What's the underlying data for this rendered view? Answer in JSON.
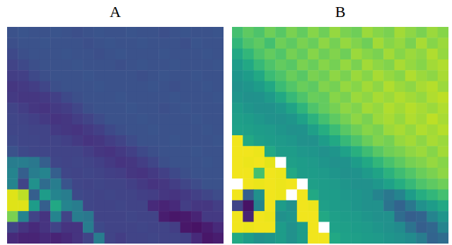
{
  "chart_data": [
    {
      "type": "heatmap",
      "title": "A",
      "zlim": [
        0,
        1
      ],
      "tick_labels": false,
      "z": [
        [
          0.25,
          0.26,
          0.25,
          0.25,
          0.26,
          0.25,
          0.24,
          0.25,
          0.26,
          0.25,
          0.25,
          0.26,
          0.25,
          0.25,
          0.24,
          0.25,
          0.26,
          0.25,
          0.25,
          0.26
        ],
        [
          0.24,
          0.25,
          0.25,
          0.26,
          0.25,
          0.25,
          0.25,
          0.24,
          0.25,
          0.26,
          0.25,
          0.25,
          0.26,
          0.25,
          0.25,
          0.25,
          0.24,
          0.26,
          0.25,
          0.25
        ],
        [
          0.22,
          0.24,
          0.25,
          0.25,
          0.25,
          0.26,
          0.25,
          0.25,
          0.24,
          0.25,
          0.26,
          0.25,
          0.25,
          0.25,
          0.26,
          0.25,
          0.25,
          0.25,
          0.26,
          0.25
        ],
        [
          0.2,
          0.22,
          0.24,
          0.25,
          0.25,
          0.25,
          0.26,
          0.25,
          0.25,
          0.25,
          0.24,
          0.25,
          0.26,
          0.25,
          0.25,
          0.26,
          0.25,
          0.25,
          0.25,
          0.26
        ],
        [
          0.18,
          0.19,
          0.22,
          0.24,
          0.25,
          0.25,
          0.25,
          0.26,
          0.25,
          0.25,
          0.25,
          0.25,
          0.24,
          0.25,
          0.26,
          0.25,
          0.25,
          0.26,
          0.25,
          0.25
        ],
        [
          0.16,
          0.17,
          0.18,
          0.21,
          0.24,
          0.25,
          0.25,
          0.25,
          0.26,
          0.25,
          0.25,
          0.25,
          0.25,
          0.26,
          0.25,
          0.24,
          0.25,
          0.25,
          0.26,
          0.25
        ],
        [
          0.17,
          0.16,
          0.16,
          0.17,
          0.19,
          0.22,
          0.24,
          0.25,
          0.25,
          0.25,
          0.26,
          0.25,
          0.25,
          0.25,
          0.25,
          0.26,
          0.25,
          0.25,
          0.25,
          0.26
        ],
        [
          0.2,
          0.18,
          0.16,
          0.15,
          0.17,
          0.18,
          0.21,
          0.24,
          0.25,
          0.25,
          0.25,
          0.26,
          0.25,
          0.25,
          0.24,
          0.25,
          0.26,
          0.25,
          0.25,
          0.25
        ],
        [
          0.21,
          0.2,
          0.19,
          0.17,
          0.15,
          0.16,
          0.18,
          0.2,
          0.23,
          0.25,
          0.25,
          0.25,
          0.26,
          0.25,
          0.25,
          0.25,
          0.25,
          0.26,
          0.25,
          0.25
        ],
        [
          0.21,
          0.21,
          0.2,
          0.2,
          0.17,
          0.16,
          0.15,
          0.17,
          0.19,
          0.22,
          0.24,
          0.25,
          0.25,
          0.26,
          0.25,
          0.25,
          0.25,
          0.25,
          0.26,
          0.25
        ],
        [
          0.22,
          0.21,
          0.21,
          0.2,
          0.2,
          0.19,
          0.17,
          0.15,
          0.16,
          0.18,
          0.2,
          0.23,
          0.25,
          0.25,
          0.25,
          0.26,
          0.25,
          0.25,
          0.25,
          0.26
        ],
        [
          0.25,
          0.22,
          0.21,
          0.21,
          0.2,
          0.2,
          0.2,
          0.18,
          0.16,
          0.15,
          0.17,
          0.19,
          0.22,
          0.24,
          0.25,
          0.25,
          0.25,
          0.26,
          0.25,
          0.25
        ],
        [
          0.42,
          0.42,
          0.4,
          0.3,
          0.21,
          0.2,
          0.21,
          0.2,
          0.19,
          0.17,
          0.15,
          0.16,
          0.18,
          0.21,
          0.24,
          0.25,
          0.25,
          0.25,
          0.26,
          0.25
        ],
        [
          0.45,
          0.3,
          0.42,
          0.45,
          0.3,
          0.21,
          0.2,
          0.21,
          0.2,
          0.19,
          0.18,
          0.16,
          0.15,
          0.17,
          0.19,
          0.22,
          0.24,
          0.25,
          0.25,
          0.25
        ],
        [
          0.45,
          0.2,
          0.5,
          0.35,
          0.42,
          0.26,
          0.21,
          0.2,
          0.21,
          0.2,
          0.2,
          0.19,
          0.17,
          0.15,
          0.16,
          0.18,
          0.21,
          0.23,
          0.25,
          0.25
        ],
        [
          0.95,
          0.9,
          0.3,
          0.55,
          0.45,
          0.42,
          0.22,
          0.21,
          0.2,
          0.21,
          0.2,
          0.2,
          0.19,
          0.18,
          0.16,
          0.15,
          0.17,
          0.19,
          0.21,
          0.23
        ],
        [
          0.95,
          0.95,
          0.55,
          0.3,
          0.6,
          0.45,
          0.42,
          0.21,
          0.2,
          0.2,
          0.21,
          0.2,
          0.2,
          0.12,
          0.1,
          0.12,
          0.18,
          0.16,
          0.16,
          0.18
        ],
        [
          0.8,
          0.45,
          0.2,
          0.15,
          0.45,
          0.2,
          0.42,
          0.4,
          0.2,
          0.2,
          0.2,
          0.21,
          0.2,
          0.2,
          0.08,
          0.06,
          0.07,
          0.1,
          0.17,
          0.17
        ],
        [
          0.2,
          0.15,
          0.12,
          0.15,
          0.2,
          0.15,
          0.15,
          0.42,
          0.22,
          0.2,
          0.2,
          0.2,
          0.21,
          0.2,
          0.2,
          0.18,
          0.06,
          0.05,
          0.08,
          0.12
        ],
        [
          0.12,
          0.1,
          0.1,
          0.12,
          0.1,
          0.12,
          0.15,
          0.2,
          0.42,
          0.2,
          0.18,
          0.2,
          0.2,
          0.21,
          0.2,
          0.2,
          0.19,
          0.12,
          0.06,
          0.08
        ]
      ]
    },
    {
      "type": "heatmap",
      "title": "B",
      "zlim": [
        0,
        1
      ],
      "tick_labels": false,
      "z": [
        [
          0.7,
          0.75,
          0.72,
          0.78,
          0.74,
          0.8,
          0.76,
          0.82,
          0.78,
          0.84,
          0.8,
          0.78,
          0.85,
          0.82,
          0.8,
          0.86,
          0.83,
          0.8,
          0.85,
          0.82
        ],
        [
          0.66,
          0.72,
          0.75,
          0.7,
          0.78,
          0.75,
          0.8,
          0.77,
          0.83,
          0.79,
          0.84,
          0.81,
          0.78,
          0.86,
          0.82,
          0.84,
          0.8,
          0.87,
          0.82,
          0.85
        ],
        [
          0.6,
          0.66,
          0.72,
          0.76,
          0.73,
          0.79,
          0.76,
          0.82,
          0.78,
          0.81,
          0.78,
          0.85,
          0.82,
          0.8,
          0.86,
          0.82,
          0.85,
          0.83,
          0.88,
          0.84
        ],
        [
          0.55,
          0.6,
          0.67,
          0.72,
          0.76,
          0.74,
          0.8,
          0.77,
          0.82,
          0.79,
          0.84,
          0.8,
          0.86,
          0.83,
          0.81,
          0.87,
          0.84,
          0.82,
          0.86,
          0.88
        ],
        [
          0.52,
          0.55,
          0.6,
          0.68,
          0.72,
          0.77,
          0.74,
          0.8,
          0.78,
          0.83,
          0.8,
          0.85,
          0.82,
          0.87,
          0.84,
          0.82,
          0.88,
          0.85,
          0.83,
          0.87
        ],
        [
          0.5,
          0.52,
          0.55,
          0.6,
          0.68,
          0.73,
          0.77,
          0.75,
          0.81,
          0.79,
          0.84,
          0.82,
          0.86,
          0.83,
          0.88,
          0.85,
          0.83,
          0.87,
          0.89,
          0.85
        ],
        [
          0.52,
          0.5,
          0.51,
          0.54,
          0.6,
          0.67,
          0.72,
          0.77,
          0.76,
          0.82,
          0.8,
          0.85,
          0.83,
          0.87,
          0.85,
          0.88,
          0.86,
          0.84,
          0.88,
          0.9
        ],
        [
          0.55,
          0.52,
          0.5,
          0.5,
          0.53,
          0.58,
          0.65,
          0.72,
          0.76,
          0.79,
          0.83,
          0.81,
          0.86,
          0.84,
          0.88,
          0.86,
          0.89,
          0.87,
          0.85,
          0.88
        ],
        [
          0.56,
          0.55,
          0.53,
          0.51,
          0.5,
          0.52,
          0.57,
          0.64,
          0.7,
          0.75,
          0.79,
          0.83,
          0.8,
          0.85,
          0.87,
          0.84,
          0.88,
          0.86,
          0.9,
          0.87
        ],
        [
          0.57,
          0.56,
          0.55,
          0.54,
          0.52,
          0.5,
          0.51,
          0.56,
          0.62,
          0.68,
          0.74,
          0.78,
          0.82,
          0.8,
          0.85,
          0.87,
          0.84,
          0.88,
          0.86,
          0.89
        ],
        [
          0.98,
          0.6,
          0.56,
          0.55,
          0.54,
          0.53,
          0.5,
          0.5,
          0.55,
          0.6,
          0.67,
          0.72,
          0.77,
          0.81,
          0.79,
          0.84,
          0.86,
          0.83,
          0.87,
          0.85
        ],
        [
          0.98,
          0.98,
          0.97,
          0.6,
          0.55,
          0.55,
          0.53,
          0.52,
          0.5,
          0.52,
          0.57,
          0.63,
          0.69,
          0.74,
          0.78,
          0.8,
          0.83,
          0.85,
          0.82,
          0.86
        ],
        [
          0.98,
          0.97,
          0.98,
          0.96,
          null,
          0.56,
          0.55,
          0.54,
          0.52,
          0.5,
          0.51,
          0.55,
          0.6,
          0.66,
          0.71,
          0.75,
          0.79,
          0.81,
          0.84,
          0.82
        ],
        [
          0.98,
          0.98,
          0.7,
          0.98,
          0.97,
          0.6,
          0.55,
          0.55,
          0.54,
          0.52,
          0.5,
          0.51,
          0.54,
          0.58,
          0.64,
          0.69,
          0.73,
          0.77,
          0.8,
          0.83
        ],
        [
          null,
          0.98,
          0.97,
          0.98,
          0.97,
          0.98,
          null,
          0.56,
          0.55,
          0.54,
          0.52,
          0.5,
          0.5,
          0.53,
          0.57,
          0.62,
          0.67,
          0.72,
          0.75,
          0.78
        ],
        [
          0.98,
          0.3,
          0.5,
          0.98,
          0.97,
          null,
          0.98,
          0.6,
          0.55,
          0.55,
          0.53,
          0.52,
          0.5,
          0.45,
          0.4,
          0.45,
          0.55,
          0.62,
          0.66,
          0.7
        ],
        [
          0.2,
          0.05,
          0.45,
          0.98,
          0.55,
          0.5,
          0.98,
          0.97,
          0.56,
          0.55,
          0.54,
          0.52,
          0.5,
          0.5,
          0.38,
          0.32,
          0.4,
          0.5,
          0.55,
          0.6
        ],
        [
          0.98,
          0.1,
          0.98,
          0.97,
          0.5,
          0.52,
          0.98,
          0.98,
          0.6,
          0.56,
          0.55,
          0.54,
          0.52,
          0.5,
          0.5,
          0.35,
          0.3,
          0.32,
          0.45,
          0.52
        ],
        [
          0.98,
          0.97,
          0.98,
          0.98,
          0.55,
          0.5,
          0.55,
          0.98,
          null,
          0.57,
          0.56,
          0.55,
          0.54,
          0.52,
          0.5,
          0.48,
          0.38,
          0.3,
          0.33,
          0.45
        ],
        [
          0.6,
          0.55,
          0.5,
          0.52,
          0.55,
          0.5,
          0.55,
          0.98,
          0.98,
          0.6,
          0.57,
          0.56,
          0.55,
          0.54,
          0.52,
          0.5,
          0.48,
          0.42,
          0.32,
          0.35
        ]
      ]
    }
  ]
}
